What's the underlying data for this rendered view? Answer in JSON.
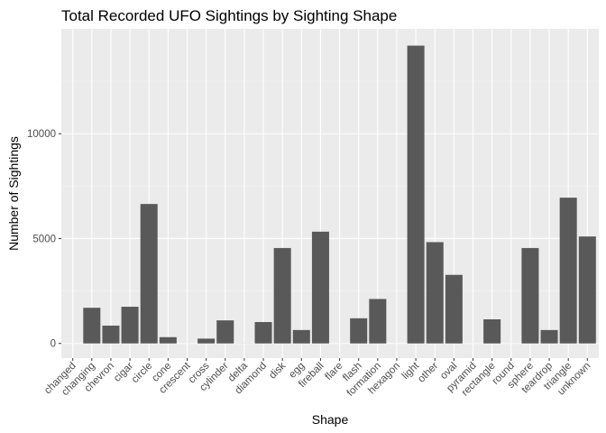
{
  "chart_data": {
    "type": "bar",
    "title": "Total Recorded UFO Sightings by Sighting Shape",
    "xlabel": "Shape",
    "ylabel": "Number of Sightings",
    "ylim": [
      -700,
      15000
    ],
    "yticks": [
      0,
      5000,
      10000
    ],
    "ytick_labels": [
      "0",
      "5000",
      "10000"
    ],
    "grid": true,
    "categories": [
      "changed",
      "changing",
      "chevron",
      "cigar",
      "circle",
      "cone",
      "crescent",
      "cross",
      "cylinder",
      "delta",
      "diamond",
      "disk",
      "egg",
      "fireball",
      "flare",
      "flash",
      "formation",
      "hexagon",
      "light",
      "other",
      "oval",
      "pyramid",
      "rectangle",
      "round",
      "sphere",
      "teardrop",
      "triangle",
      "unknown"
    ],
    "values": [
      1,
      1700,
      850,
      1750,
      6650,
      300,
      2,
      230,
      1100,
      5,
      1020,
      4550,
      640,
      5330,
      1,
      1200,
      2120,
      1,
      14200,
      4830,
      3270,
      2,
      1150,
      2,
      4550,
      640,
      6950,
      5100
    ]
  },
  "colors": {
    "panel": "#ebebeb",
    "grid_major": "#ffffff",
    "grid_minor": "#f5f5f5",
    "bar": "#595959",
    "tick_text": "#4d4d4d",
    "tick_mark": "#333333"
  }
}
